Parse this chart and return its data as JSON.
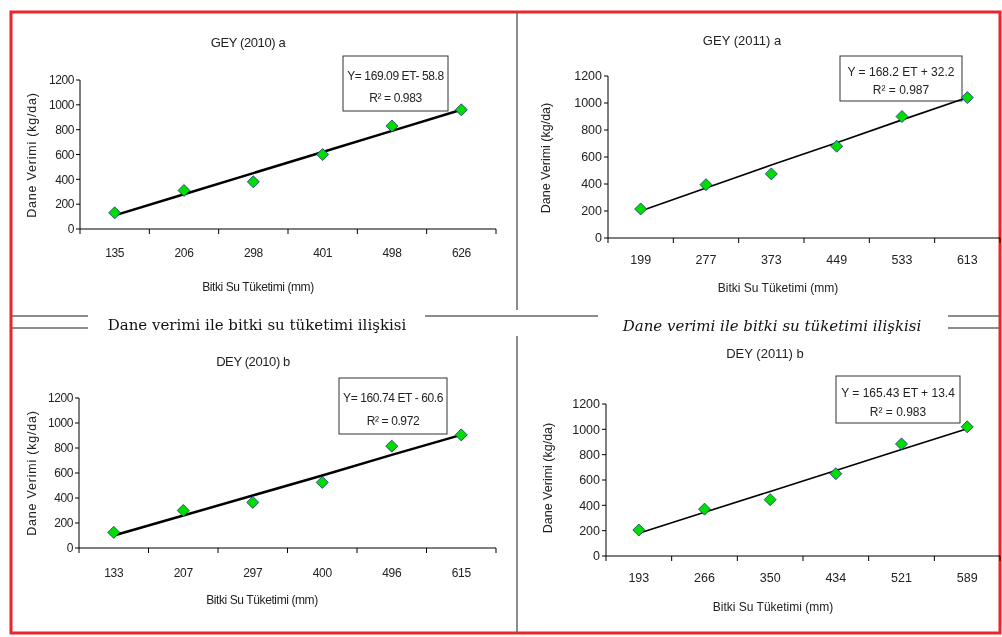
{
  "chart_data": [
    {
      "type": "scatter",
      "title": "GEY (2010) a",
      "xlabel": "Bitki Su Tüketimi (mm)",
      "ylabel": "Dane Verimi (kg/da)",
      "categories": [
        "135",
        "206",
        "298",
        "401",
        "498",
        "626"
      ],
      "series": [
        {
          "color": "#00dd00",
          "values": [
            130,
            310,
            380,
            600,
            830,
            960
          ]
        },
        {
          "type": "line",
          "color": "#000000",
          "marker": "none",
          "values": [
            110,
            280,
            450,
            620,
            790,
            960
          ]
        }
      ],
      "ylim": [
        0,
        1200
      ],
      "yticks": [
        0,
        200,
        400,
        600,
        800,
        1000,
        1200
      ],
      "marker": "diamond",
      "annotations": [
        "Y= 169.09 ET- 58.8",
        "R² = 0.983",
        "Dane verimi ile bitki su tüketimi ilişkisi"
      ]
    },
    {
      "type": "scatter",
      "title": "GEY  (2011)  a",
      "xlabel": "Bitki Su Tüketimi (mm)",
      "ylabel": "Dane Verimi (kg/da)",
      "categories": [
        "199",
        "277",
        "373",
        "449",
        "533",
        "613"
      ],
      "series": [
        {
          "color": "#00dd00",
          "values": [
            215,
            395,
            475,
            680,
            900,
            1040
          ]
        },
        {
          "type": "line",
          "color": "#000000",
          "marker": "none",
          "values": [
            200,
            370,
            540,
            705,
            875,
            1040
          ]
        }
      ],
      "ylim": [
        0,
        1200
      ],
      "yticks": [
        0,
        200,
        400,
        600,
        800,
        1000,
        1200
      ],
      "marker": "diamond",
      "annotations": [
        "Y = 168.2 ET + 32.2",
        "R² = 0.987",
        "Dane verimi ile bitki su tüketimi ilişkisi"
      ]
    },
    {
      "type": "scatter",
      "title": "DEY (2010) b",
      "xlabel": "Bitki Su Tüketimi (mm)",
      "ylabel": "Dane Verimi (kg/da)",
      "categories": [
        "133",
        "207",
        "297",
        "400",
        "496",
        "615"
      ],
      "series": [
        {
          "color": "#00dd00",
          "values": [
            125,
            300,
            365,
            525,
            815,
            905
          ]
        },
        {
          "type": "line",
          "color": "#000000",
          "marker": "none",
          "values": [
            100,
            260,
            420,
            580,
            745,
            905
          ]
        }
      ],
      "ylim": [
        0,
        1200
      ],
      "yticks": [
        0,
        200,
        400,
        600,
        800,
        1000,
        1200
      ],
      "marker": "diamond",
      "annotations": [
        "Y= 160.74 ET - 60.6",
        "R² = 0.972"
      ]
    },
    {
      "type": "scatter",
      "title": "DEY (2011) b",
      "xlabel": "Bitki Su Tüketimi (mm)",
      "ylabel": "Dane Verimi (kg/da)",
      "categories": [
        "193",
        "266",
        "350",
        "434",
        "521",
        "589"
      ],
      "series": [
        {
          "color": "#00dd00",
          "values": [
            205,
            370,
            445,
            650,
            885,
            1020
          ]
        },
        {
          "type": "line",
          "color": "#000000",
          "marker": "none",
          "values": [
            180,
            345,
            510,
            675,
            840,
            1005
          ]
        }
      ],
      "ylim": [
        0,
        1200
      ],
      "yticks": [
        0,
        200,
        400,
        600,
        800,
        1000,
        1200
      ],
      "marker": "diamond",
      "annotations": [
        "Y = 165.43 ET + 13.4",
        "R² = 0.983"
      ]
    }
  ]
}
